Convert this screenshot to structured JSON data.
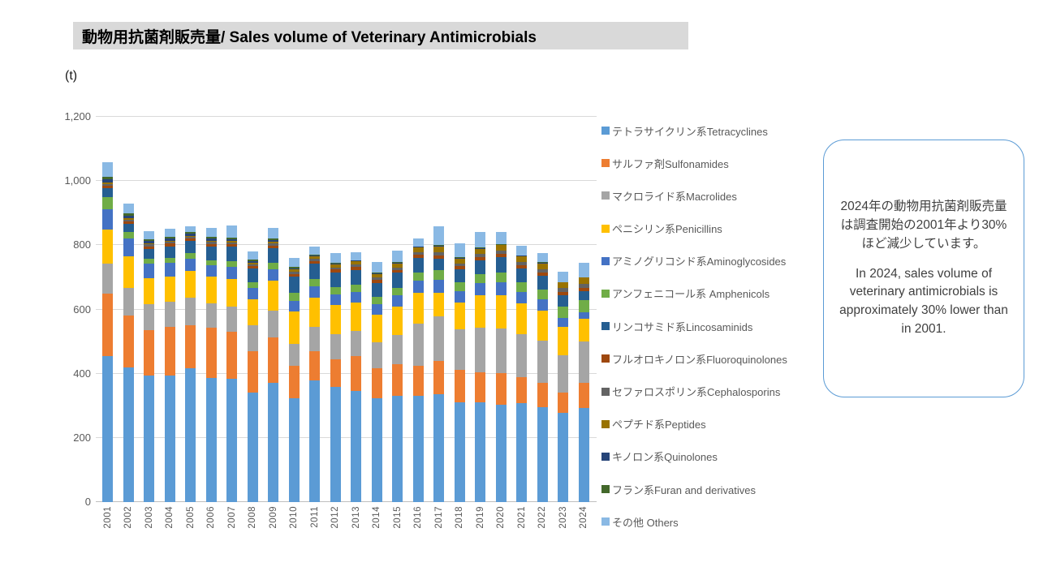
{
  "title": "動物用抗菌剤販売量/ Sales volume of Veterinary Antimicrobials",
  "y_axis": {
    "unit": "(t)",
    "ticks": [
      "1,200",
      "1,000",
      "800",
      "600",
      "400",
      "200",
      "0"
    ],
    "max": 1200,
    "min": 0,
    "step": 200
  },
  "callout": {
    "jp": "2024年の動物用抗菌剤販売量は調査開始の2001年より30%ほど減少しています。",
    "en": "In 2024, sales volume of veterinary antimicrobials is approximately 30% lower than in 2001."
  },
  "chart_data": {
    "type": "bar",
    "stacked": true,
    "title": "動物用抗菌剤販売量/ Sales volume of Veterinary Antimicrobials",
    "ylabel": "(t)",
    "ylim": [
      0,
      1200
    ],
    "grid": true,
    "legend_position": "right",
    "categories": [
      2001,
      2002,
      2003,
      2004,
      2005,
      2006,
      2007,
      2008,
      2009,
      2010,
      2011,
      2012,
      2013,
      2014,
      2015,
      2016,
      2017,
      2018,
      2019,
      2020,
      2021,
      2022,
      2023,
      2024
    ],
    "series": [
      {
        "key": "tetracyclines",
        "name": "テトラサイクリン系Tetracyclines",
        "color": "#5B9BD5",
        "values": [
          454,
          420,
          395,
          395,
          417,
          387,
          385,
          340,
          372,
          323,
          380,
          360,
          345,
          323,
          330,
          332,
          336,
          312,
          312,
          302,
          308,
          296,
          278,
          292
        ]
      },
      {
        "key": "sulfonamides",
        "name": "サルファ剤Sulfonamides",
        "color": "#ED7D31",
        "values": [
          195,
          160,
          140,
          150,
          135,
          156,
          145,
          130,
          140,
          101,
          90,
          85,
          110,
          95,
          100,
          93,
          104,
          100,
          92,
          100,
          82,
          76,
          62,
          80
        ]
      },
      {
        "key": "macrolides",
        "name": "マクロライド系Macrolides",
        "color": "#A5A5A5",
        "values": [
          93,
          88,
          82,
          80,
          85,
          76,
          80,
          82,
          85,
          68,
          75,
          78,
          78,
          80,
          90,
          131,
          139,
          125,
          140,
          138,
          132,
          130,
          118,
          128
        ]
      },
      {
        "key": "penicillins",
        "name": "ペニシリン系Penicillins",
        "color": "#FFC000",
        "values": [
          108,
          98,
          80,
          78,
          82,
          84,
          85,
          80,
          92,
          101,
          92,
          90,
          88,
          85,
          88,
          97,
          72,
          85,
          100,
          105,
          96,
          95,
          88,
          70
        ]
      },
      {
        "key": "aminoglycosides",
        "name": "アミノグリコシド系Aminoglycosides",
        "color": "#4472C4",
        "values": [
          61,
          55,
          45,
          42,
          40,
          34,
          38,
          35,
          36,
          34,
          35,
          34,
          34,
          34,
          36,
          38,
          42,
          36,
          38,
          40,
          36,
          34,
          28,
          21
        ]
      },
      {
        "key": "amphenicols",
        "name": "アンフェニコール系 Amphenicols",
        "color": "#70AD47",
        "values": [
          38,
          20,
          15,
          16,
          16,
          17,
          18,
          18,
          20,
          25,
          22,
          22,
          22,
          22,
          24,
          24,
          30,
          26,
          28,
          30,
          30,
          32,
          34,
          38
        ]
      },
      {
        "key": "lincosaminids",
        "name": "リンコサミド系Lincosaminids",
        "color": "#255E91",
        "values": [
          28,
          25,
          32,
          36,
          38,
          42,
          44,
          42,
          45,
          50,
          48,
          46,
          46,
          44,
          46,
          46,
          36,
          42,
          44,
          48,
          44,
          42,
          36,
          28
        ]
      },
      {
        "key": "fluoroquinolones",
        "name": "フルオロキノロン系Fluoroquinolones",
        "color": "#9E480E",
        "values": [
          8,
          8,
          8,
          8,
          8,
          8,
          8,
          8,
          8,
          8,
          8,
          9,
          9,
          9,
          9,
          9,
          9,
          9,
          9,
          10,
          10,
          10,
          10,
          10
        ]
      },
      {
        "key": "cephalosporins",
        "name": "セファロスポリン系Cephalosporins",
        "color": "#636363",
        "values": [
          6,
          6,
          6,
          6,
          6,
          6,
          6,
          6,
          7,
          7,
          7,
          7,
          8,
          8,
          8,
          9,
          9,
          9,
          10,
          10,
          11,
          11,
          12,
          13
        ]
      },
      {
        "key": "peptides",
        "name": "ペプチド系Peptides",
        "color": "#997300",
        "values": [
          4,
          4,
          3,
          3,
          3,
          3,
          4,
          5,
          6,
          8,
          8,
          9,
          10,
          11,
          13,
          14,
          18,
          15,
          16,
          17,
          16,
          17,
          18,
          19
        ]
      },
      {
        "key": "quinolones",
        "name": "キノロン系Quinolones",
        "color": "#264478",
        "values": [
          10,
          9,
          8,
          8,
          7,
          7,
          6,
          5,
          5,
          4,
          3,
          3,
          2,
          2,
          2,
          2,
          3,
          2,
          2,
          2,
          2,
          2,
          1,
          1
        ]
      },
      {
        "key": "furan",
        "name": "フラン系Furan and derivatives",
        "color": "#43682B",
        "values": [
          8,
          6,
          5,
          5,
          4,
          5,
          4,
          4,
          4,
          3,
          3,
          3,
          2,
          2,
          2,
          2,
          3,
          2,
          2,
          2,
          2,
          2,
          1,
          1
        ]
      },
      {
        "key": "others",
        "name": "その他 Others",
        "color": "#8AB9E4",
        "values": [
          45,
          31,
          24,
          25,
          19,
          30,
          39,
          26,
          34,
          29,
          24,
          29,
          24,
          33,
          36,
          25,
          59,
          42,
          48,
          37,
          30,
          28,
          32,
          44
        ]
      }
    ]
  }
}
